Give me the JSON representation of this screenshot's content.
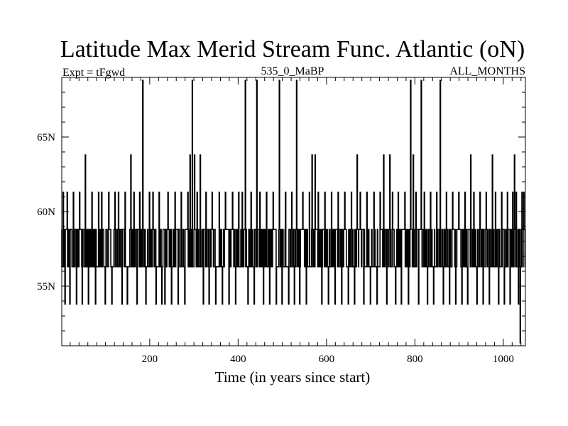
{
  "chart_data": {
    "type": "line",
    "title": "Latitude Max Merid Stream Func. Atlantic (oN)",
    "subtitle_left": "Expt = tFgwd",
    "subtitle_center": "535_0_MaBP",
    "subtitle_right": "ALL_MONTHS",
    "xlabel": "Time (in years since start)",
    "ylabel": "",
    "xlim": [
      1,
      1050
    ],
    "ylim": [
      51,
      69
    ],
    "x_ticks": [
      200,
      400,
      600,
      800,
      1000
    ],
    "y_ticks": [
      {
        "value": 55,
        "label": "55N"
      },
      {
        "value": 60,
        "label": "60N"
      },
      {
        "value": 65,
        "label": "65N"
      }
    ],
    "levels": [
      51.2,
      53.8,
      56.3,
      58.8,
      61.3,
      63.8,
      68.8
    ],
    "dominant_range": [
      56.3,
      58.8
    ],
    "spikes": [
      {
        "x": 5,
        "y": 61.3
      },
      {
        "x": 9,
        "y": 53.8
      },
      {
        "x": 14,
        "y": 61.3
      },
      {
        "x": 20,
        "y": 53.8
      },
      {
        "x": 28,
        "y": 61.3
      },
      {
        "x": 35,
        "y": 53.8
      },
      {
        "x": 42,
        "y": 61.3
      },
      {
        "x": 48,
        "y": 53.8
      },
      {
        "x": 55,
        "y": 63.8
      },
      {
        "x": 62,
        "y": 53.8
      },
      {
        "x": 70,
        "y": 61.3
      },
      {
        "x": 78,
        "y": 53.8
      },
      {
        "x": 85,
        "y": 61.3
      },
      {
        "x": 92,
        "y": 61.3
      },
      {
        "x": 100,
        "y": 53.8
      },
      {
        "x": 108,
        "y": 61.3
      },
      {
        "x": 115,
        "y": 53.8
      },
      {
        "x": 122,
        "y": 61.3
      },
      {
        "x": 130,
        "y": 61.3
      },
      {
        "x": 138,
        "y": 53.8
      },
      {
        "x": 145,
        "y": 61.3
      },
      {
        "x": 150,
        "y": 53.8
      },
      {
        "x": 158,
        "y": 63.8
      },
      {
        "x": 165,
        "y": 61.3
      },
      {
        "x": 172,
        "y": 53.8
      },
      {
        "x": 178,
        "y": 61.3
      },
      {
        "x": 185,
        "y": 68.8
      },
      {
        "x": 192,
        "y": 53.8
      },
      {
        "x": 200,
        "y": 61.3
      },
      {
        "x": 208,
        "y": 61.3
      },
      {
        "x": 215,
        "y": 53.8
      },
      {
        "x": 222,
        "y": 61.3
      },
      {
        "x": 228,
        "y": 53.8
      },
      {
        "x": 235,
        "y": 53.8
      },
      {
        "x": 242,
        "y": 61.3
      },
      {
        "x": 250,
        "y": 53.8
      },
      {
        "x": 258,
        "y": 61.3
      },
      {
        "x": 265,
        "y": 53.8
      },
      {
        "x": 272,
        "y": 61.3
      },
      {
        "x": 280,
        "y": 53.8
      },
      {
        "x": 287,
        "y": 61.3
      },
      {
        "x": 292,
        "y": 63.8
      },
      {
        "x": 297,
        "y": 68.8
      },
      {
        "x": 302,
        "y": 63.8
      },
      {
        "x": 308,
        "y": 61.3
      },
      {
        "x": 315,
        "y": 63.8
      },
      {
        "x": 322,
        "y": 53.8
      },
      {
        "x": 328,
        "y": 61.3
      },
      {
        "x": 335,
        "y": 53.8
      },
      {
        "x": 342,
        "y": 61.3
      },
      {
        "x": 350,
        "y": 53.8
      },
      {
        "x": 358,
        "y": 61.3
      },
      {
        "x": 365,
        "y": 53.8
      },
      {
        "x": 372,
        "y": 61.3
      },
      {
        "x": 380,
        "y": 53.8
      },
      {
        "x": 388,
        "y": 61.3
      },
      {
        "x": 395,
        "y": 53.8
      },
      {
        "x": 402,
        "y": 61.3
      },
      {
        "x": 410,
        "y": 61.3
      },
      {
        "x": 417,
        "y": 68.8
      },
      {
        "x": 423,
        "y": 53.8
      },
      {
        "x": 430,
        "y": 61.3
      },
      {
        "x": 437,
        "y": 53.8
      },
      {
        "x": 443,
        "y": 68.8
      },
      {
        "x": 450,
        "y": 61.3
      },
      {
        "x": 458,
        "y": 53.8
      },
      {
        "x": 465,
        "y": 61.3
      },
      {
        "x": 472,
        "y": 53.8
      },
      {
        "x": 480,
        "y": 61.3
      },
      {
        "x": 487,
        "y": 53.8
      },
      {
        "x": 494,
        "y": 68.8
      },
      {
        "x": 500,
        "y": 53.8
      },
      {
        "x": 508,
        "y": 61.3
      },
      {
        "x": 515,
        "y": 53.8
      },
      {
        "x": 522,
        "y": 61.3
      },
      {
        "x": 528,
        "y": 53.8
      },
      {
        "x": 533,
        "y": 68.8
      },
      {
        "x": 540,
        "y": 53.8
      },
      {
        "x": 547,
        "y": 61.3
      },
      {
        "x": 555,
        "y": 53.8
      },
      {
        "x": 562,
        "y": 61.3
      },
      {
        "x": 568,
        "y": 63.8
      },
      {
        "x": 575,
        "y": 63.8
      },
      {
        "x": 582,
        "y": 61.3
      },
      {
        "x": 590,
        "y": 53.8
      },
      {
        "x": 597,
        "y": 61.3
      },
      {
        "x": 605,
        "y": 53.8
      },
      {
        "x": 612,
        "y": 61.3
      },
      {
        "x": 620,
        "y": 53.8
      },
      {
        "x": 627,
        "y": 61.3
      },
      {
        "x": 635,
        "y": 53.8
      },
      {
        "x": 642,
        "y": 61.3
      },
      {
        "x": 650,
        "y": 53.8
      },
      {
        "x": 657,
        "y": 61.3
      },
      {
        "x": 664,
        "y": 53.8
      },
      {
        "x": 670,
        "y": 63.8
      },
      {
        "x": 677,
        "y": 61.3
      },
      {
        "x": 685,
        "y": 53.8
      },
      {
        "x": 692,
        "y": 61.3
      },
      {
        "x": 700,
        "y": 53.8
      },
      {
        "x": 708,
        "y": 61.3
      },
      {
        "x": 715,
        "y": 53.8
      },
      {
        "x": 722,
        "y": 61.3
      },
      {
        "x": 730,
        "y": 63.8
      },
      {
        "x": 737,
        "y": 53.8
      },
      {
        "x": 744,
        "y": 63.8
      },
      {
        "x": 750,
        "y": 61.3
      },
      {
        "x": 757,
        "y": 53.8
      },
      {
        "x": 763,
        "y": 61.3
      },
      {
        "x": 770,
        "y": 53.8
      },
      {
        "x": 778,
        "y": 61.3
      },
      {
        "x": 786,
        "y": 53.8
      },
      {
        "x": 791,
        "y": 68.8
      },
      {
        "x": 797,
        "y": 63.8
      },
      {
        "x": 803,
        "y": 61.3
      },
      {
        "x": 809,
        "y": 53.8
      },
      {
        "x": 815,
        "y": 68.8
      },
      {
        "x": 822,
        "y": 61.3
      },
      {
        "x": 829,
        "y": 53.8
      },
      {
        "x": 836,
        "y": 61.3
      },
      {
        "x": 843,
        "y": 53.8
      },
      {
        "x": 850,
        "y": 61.3
      },
      {
        "x": 858,
        "y": 68.8
      },
      {
        "x": 865,
        "y": 53.8
      },
      {
        "x": 872,
        "y": 61.3
      },
      {
        "x": 879,
        "y": 53.8
      },
      {
        "x": 886,
        "y": 61.3
      },
      {
        "x": 893,
        "y": 53.8
      },
      {
        "x": 900,
        "y": 61.3
      },
      {
        "x": 907,
        "y": 53.8
      },
      {
        "x": 914,
        "y": 61.3
      },
      {
        "x": 920,
        "y": 53.8
      },
      {
        "x": 927,
        "y": 63.8
      },
      {
        "x": 934,
        "y": 61.3
      },
      {
        "x": 941,
        "y": 53.8
      },
      {
        "x": 948,
        "y": 61.3
      },
      {
        "x": 955,
        "y": 53.8
      },
      {
        "x": 962,
        "y": 61.3
      },
      {
        "x": 969,
        "y": 53.8
      },
      {
        "x": 976,
        "y": 63.8
      },
      {
        "x": 983,
        "y": 61.3
      },
      {
        "x": 990,
        "y": 53.8
      },
      {
        "x": 997,
        "y": 61.3
      },
      {
        "x": 1003,
        "y": 53.8
      },
      {
        "x": 1010,
        "y": 61.3
      },
      {
        "x": 1016,
        "y": 53.8
      },
      {
        "x": 1022,
        "y": 61.3
      },
      {
        "x": 1026,
        "y": 63.8
      },
      {
        "x": 1030,
        "y": 61.3
      },
      {
        "x": 1035,
        "y": 53.8
      },
      {
        "x": 1039,
        "y": 51.2
      },
      {
        "x": 1043,
        "y": 61.3
      },
      {
        "x": 1047,
        "y": 61.3
      }
    ],
    "grid": false,
    "legend": "none",
    "line_color": "#000000"
  }
}
